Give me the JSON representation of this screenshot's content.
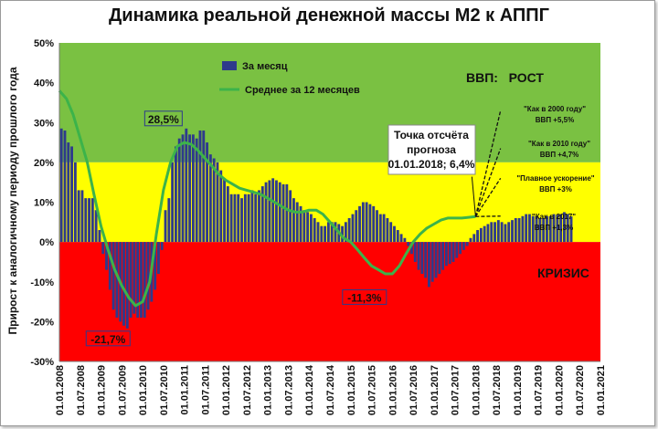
{
  "chart_data": {
    "type": "bar",
    "title": "Динамика реальной денежной массы М2 к АППГ",
    "ylabel": "Прирост к аналогичному периоду прошлого года",
    "ylim": [
      -30,
      50
    ],
    "y_ticks": [
      "-30%",
      "-20%",
      "-10%",
      "0%",
      "10%",
      "20%",
      "30%",
      "40%",
      "50%"
    ],
    "y_tick_values": [
      -30,
      -20,
      -10,
      0,
      10,
      20,
      30,
      40,
      50
    ],
    "x_ticks": [
      "01.01.2008",
      "01.07.2008",
      "01.01.2009",
      "01.07.2009",
      "01.01.2010",
      "01.07.2010",
      "01.01.2011",
      "01.07.2011",
      "01.01.2012",
      "01.07.2012",
      "01.01.2013",
      "01.07.2013",
      "01.01.2014",
      "01.07.2014",
      "01.01.2015",
      "01.07.2015",
      "01.01.2016",
      "01.07.2016",
      "01.01.2017",
      "01.07.2017",
      "01.01.2018",
      "01.07.2018",
      "01.01.2019",
      "01.07.2019",
      "01.01.2020",
      "01.07.2020",
      "01.01.2021"
    ],
    "zones": [
      {
        "name": "ВВП:   РОСТ",
        "from": 20,
        "to": 50,
        "color": "#7ac142"
      },
      {
        "name": "",
        "from": 0,
        "to": 20,
        "color": "#ffff00"
      },
      {
        "name": "КРИЗИС",
        "from": -30,
        "to": 0,
        "color": "#ff0000"
      }
    ],
    "legend": {
      "position": "top-left"
    },
    "series": [
      {
        "name": "За месяц",
        "kind": "bar",
        "color": "#2e3a8c",
        "start": "2008-01",
        "values": [
          28.5,
          28,
          25,
          24,
          20,
          13,
          13,
          11,
          11,
          11,
          8,
          3,
          -3,
          -7,
          -12,
          -17,
          -19,
          -20,
          -21,
          -21.7,
          -19,
          -18,
          -19,
          -19,
          -19,
          -17,
          -15,
          -12,
          -8,
          -2,
          8,
          11,
          20,
          24,
          26,
          27,
          28.5,
          27,
          27,
          26,
          28,
          28,
          25,
          22,
          21,
          20,
          18,
          16,
          14,
          12,
          12,
          12,
          11,
          12,
          12,
          13,
          12,
          13,
          14,
          15,
          15.5,
          16,
          15.5,
          15,
          14.5,
          14.5,
          13,
          11,
          10,
          9,
          8,
          7.5,
          7,
          6,
          5,
          4,
          4,
          5,
          5,
          5,
          4.5,
          4,
          5,
          6,
          7,
          8,
          9,
          10,
          10,
          9.5,
          9,
          8,
          7,
          7,
          6,
          5,
          4,
          3,
          2,
          1,
          -1,
          -3,
          -5,
          -7,
          -8,
          -9,
          -11.3,
          -10,
          -9,
          -8,
          -7,
          -6,
          -5.5,
          -5,
          -4,
          -3,
          -2,
          -1,
          1,
          2,
          3,
          3.5,
          4,
          4.5,
          5,
          5,
          5.5,
          5,
          4.5,
          5,
          5.5,
          6,
          6,
          6.5,
          7,
          7,
          6.5,
          6.5,
          6,
          6,
          6.5,
          6.5,
          7,
          6.8,
          7,
          7.5,
          7,
          6.4
        ]
      },
      {
        "name": "Среднее за 12 месяцев",
        "kind": "line",
        "color": "#3cb34a",
        "points": [
          [
            2008.0,
            38
          ],
          [
            2008.17,
            36
          ],
          [
            2008.33,
            32
          ],
          [
            2008.5,
            26
          ],
          [
            2008.67,
            20
          ],
          [
            2008.83,
            12
          ],
          [
            2009.0,
            4
          ],
          [
            2009.17,
            -2
          ],
          [
            2009.33,
            -7
          ],
          [
            2009.5,
            -11
          ],
          [
            2009.67,
            -14
          ],
          [
            2009.83,
            -16
          ],
          [
            2010.0,
            -15
          ],
          [
            2010.17,
            -10
          ],
          [
            2010.33,
            2
          ],
          [
            2010.5,
            13
          ],
          [
            2010.67,
            20
          ],
          [
            2010.83,
            24
          ],
          [
            2011.0,
            25
          ],
          [
            2011.17,
            24.5
          ],
          [
            2011.33,
            23
          ],
          [
            2011.5,
            21
          ],
          [
            2011.67,
            19
          ],
          [
            2011.83,
            17
          ],
          [
            2012.0,
            15.5
          ],
          [
            2012.17,
            14.5
          ],
          [
            2012.33,
            13.5
          ],
          [
            2012.5,
            13
          ],
          [
            2012.67,
            12.5
          ],
          [
            2012.83,
            12
          ],
          [
            2013.0,
            11
          ],
          [
            2013.17,
            10
          ],
          [
            2013.33,
            9
          ],
          [
            2013.5,
            8
          ],
          [
            2013.67,
            7.5
          ],
          [
            2013.83,
            7.5
          ],
          [
            2014.0,
            8
          ],
          [
            2014.17,
            8
          ],
          [
            2014.33,
            7
          ],
          [
            2014.5,
            5
          ],
          [
            2014.67,
            3
          ],
          [
            2014.83,
            1
          ],
          [
            2015.0,
            0
          ],
          [
            2015.17,
            -2
          ],
          [
            2015.33,
            -4
          ],
          [
            2015.5,
            -6
          ],
          [
            2015.67,
            -7
          ],
          [
            2015.83,
            -8
          ],
          [
            2016.0,
            -8
          ],
          [
            2016.17,
            -6
          ],
          [
            2016.33,
            -3
          ],
          [
            2016.5,
            0
          ],
          [
            2016.67,
            2
          ],
          [
            2016.83,
            3.5
          ],
          [
            2017.0,
            4.5
          ],
          [
            2017.17,
            5.5
          ],
          [
            2017.33,
            6
          ],
          [
            2017.5,
            6
          ],
          [
            2017.67,
            6
          ],
          [
            2017.83,
            6.2
          ],
          [
            2018.0,
            6.4
          ]
        ]
      }
    ],
    "annotations": [
      {
        "text": "28,5%",
        "x": 2010.5,
        "y": 28.5
      },
      {
        "text": "-21,7%",
        "x": 2009.17,
        "y": -21.7
      },
      {
        "text": "-11,3%",
        "x": 2015.33,
        "y": -11.3
      }
    ],
    "forecast_point": {
      "lines": [
        "Точка отсчёта",
        "прогноза",
        "01.01.2018; 6,4%"
      ],
      "x": 2018.0,
      "y": 6.4
    },
    "forecast_scenarios": [
      {
        "label": "\"Как в 2000 году\"",
        "gdp": "ВВП +5,5%",
        "end_x": 2018.6,
        "end_y": 33
      },
      {
        "label": "\"Как в 2010 году\"",
        "gdp": "ВВП +4,7%",
        "end_x": 2018.6,
        "end_y": 23.5
      },
      {
        "label": "\"Плавное ускорение\"",
        "gdp": "ВВП +3%",
        "end_x": 2018.6,
        "end_y": 16
      },
      {
        "label": "\"Как в 2017\"",
        "gdp": "ВВП +1,3%",
        "end_x": 2018.6,
        "end_y": 6.5
      }
    ]
  }
}
